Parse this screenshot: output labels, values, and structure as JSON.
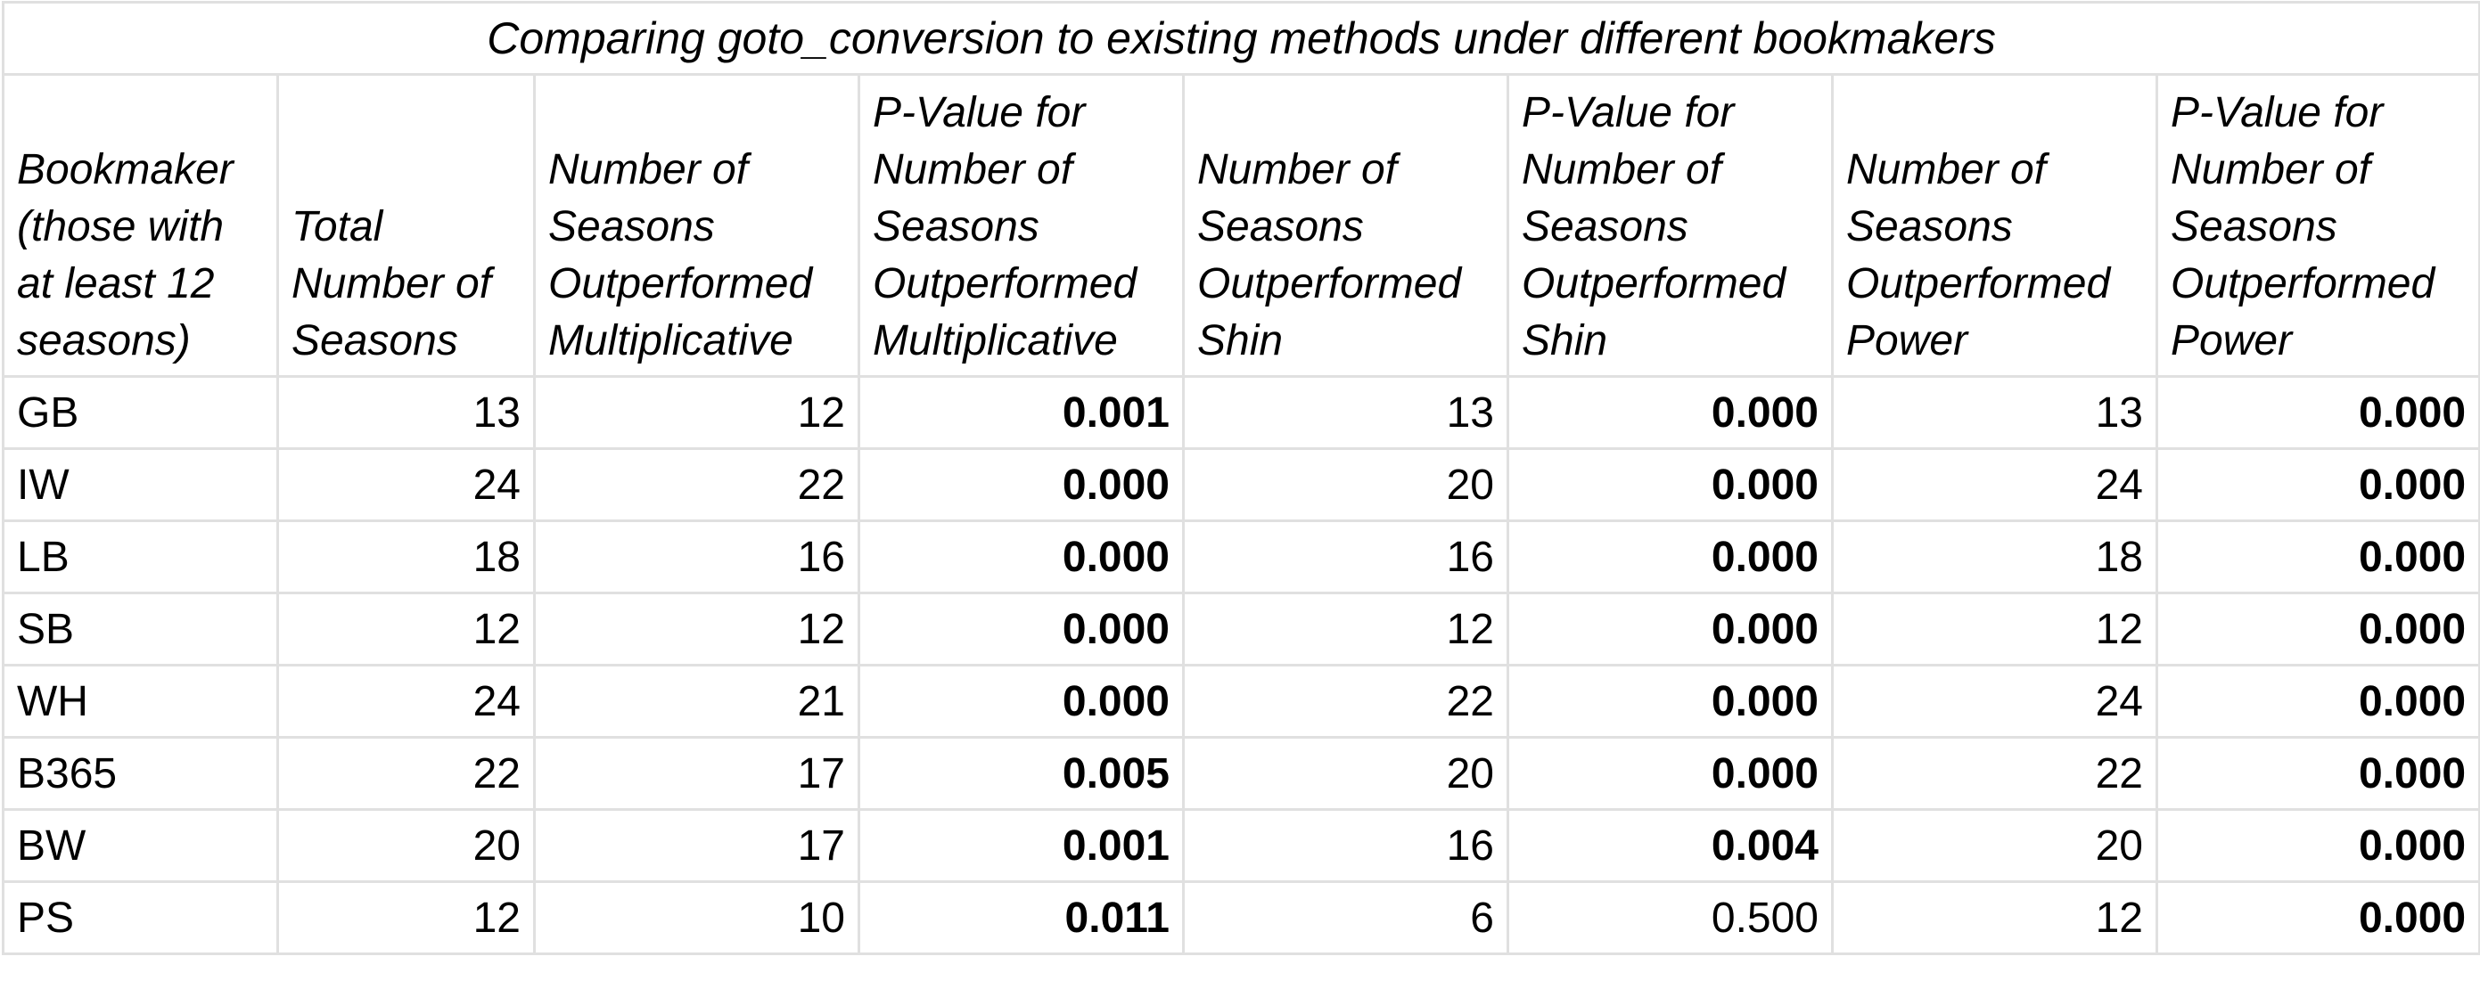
{
  "title": "Comparing goto_conversion to existing methods under different bookmakers",
  "headers": [
    "Bookmaker (those with at least 12 seasons)",
    "Total Number of Seasons",
    "Number of Seasons Outperformed Multiplicative",
    "P-Value for Number of Seasons Outperformed Multiplicative",
    "Number of Seasons Outperformed Shin",
    "P-Value for Number of Seasons Outperformed Shin",
    "Number of Seasons Outperformed Power",
    "P-Value for Number of Seasons Outperformed Power"
  ],
  "rows": [
    {
      "bookmaker": "GB",
      "total": "13",
      "mult": "12",
      "p_mult": "0.001",
      "shin": "13",
      "p_shin": "0.000",
      "power": "13",
      "p_power": "0.000"
    },
    {
      "bookmaker": "IW",
      "total": "24",
      "mult": "22",
      "p_mult": "0.000",
      "shin": "20",
      "p_shin": "0.000",
      "power": "24",
      "p_power": "0.000"
    },
    {
      "bookmaker": "LB",
      "total": "18",
      "mult": "16",
      "p_mult": "0.000",
      "shin": "16",
      "p_shin": "0.000",
      "power": "18",
      "p_power": "0.000"
    },
    {
      "bookmaker": "SB",
      "total": "12",
      "mult": "12",
      "p_mult": "0.000",
      "shin": "12",
      "p_shin": "0.000",
      "power": "12",
      "p_power": "0.000"
    },
    {
      "bookmaker": "WH",
      "total": "24",
      "mult": "21",
      "p_mult": "0.000",
      "shin": "22",
      "p_shin": "0.000",
      "power": "24",
      "p_power": "0.000"
    },
    {
      "bookmaker": "B365",
      "total": "22",
      "mult": "17",
      "p_mult": "0.005",
      "shin": "20",
      "p_shin": "0.000",
      "power": "22",
      "p_power": "0.000"
    },
    {
      "bookmaker": "BW",
      "total": "20",
      "mult": "17",
      "p_mult": "0.001",
      "shin": "16",
      "p_shin": "0.004",
      "power": "20",
      "p_power": "0.000"
    },
    {
      "bookmaker": "PS",
      "total": "12",
      "mult": "10",
      "p_mult": "0.011",
      "shin": "6",
      "p_shin": "0.500",
      "power": "12",
      "p_power": "0.000"
    }
  ],
  "bold_threshold": 0.05,
  "colors": {
    "grid": "#e0e0e0",
    "text": "#000000",
    "background": "#ffffff"
  }
}
